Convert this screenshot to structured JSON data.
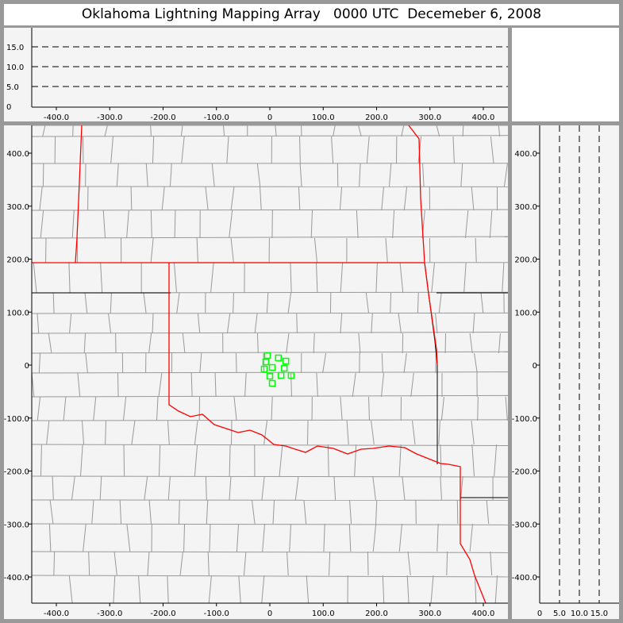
{
  "title": "Oklahoma Lightning Mapping Array   0000 UTC  Decemeber 6, 2008",
  "colors": {
    "frame": "#999999",
    "panel": "#f4f4f4",
    "state_border": "#ff0000",
    "county": "#999999",
    "source": "#00ff00"
  },
  "chart_data": [
    {
      "type": "scatter",
      "panel": "altitude-vs-east-west",
      "xlim": [
        -450,
        450
      ],
      "ylim": [
        0,
        19
      ],
      "xticks": [
        "-400.0",
        "-300.0",
        "-200.0",
        "-100.0",
        "0",
        "100.0",
        "200.0",
        "300.0",
        "400.0"
      ],
      "yticks": [
        "0",
        "5.0",
        "10.0",
        "15.0"
      ],
      "gridlines_y": [
        5,
        10,
        15
      ],
      "points": []
    },
    {
      "type": "scatter",
      "panel": "plan-view-map",
      "xlim": [
        -450,
        450
      ],
      "ylim": [
        -450,
        450
      ],
      "xticks": [
        "-400.0",
        "-300.0",
        "-200.0",
        "-100.0",
        "0",
        "100.0",
        "200.0",
        "300.0",
        "400.0"
      ],
      "yticks": [
        "-400.0",
        "-300.0",
        "-200.0",
        "-100.0",
        "0",
        "100.0",
        "200.0",
        "300.0",
        "400.0"
      ],
      "marker": "square",
      "points": [
        [
          -4.5,
          18
        ],
        [
          16,
          13.5
        ],
        [
          30,
          7.5
        ],
        [
          -7.5,
          6
        ],
        [
          4.5,
          -4.5
        ],
        [
          -10.5,
          -7.5
        ],
        [
          27,
          -6
        ],
        [
          0,
          -21
        ],
        [
          21,
          -19.5
        ],
        [
          40,
          -19.5
        ],
        [
          4.5,
          -34.5
        ]
      ]
    },
    {
      "type": "scatter",
      "panel": "north-south-vs-altitude",
      "xlim": [
        0,
        19
      ],
      "ylim": [
        -450,
        450
      ],
      "xticks": [
        "0",
        "5.0",
        "10.0",
        "15.0"
      ],
      "yticks": [
        "-400.0",
        "-300.0",
        "-200.0",
        "-100.0",
        "0",
        "100.0",
        "200.0",
        "300.0",
        "400.0"
      ],
      "gridlines_x": [
        5,
        10,
        15
      ],
      "points": []
    }
  ]
}
